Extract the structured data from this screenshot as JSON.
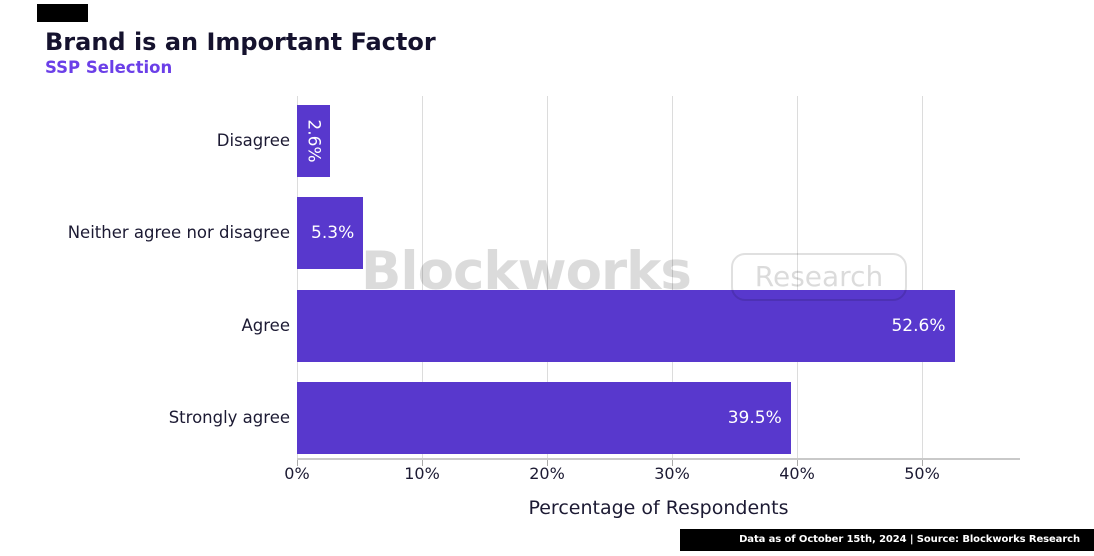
{
  "header": {
    "title": "Brand is an Important Factor",
    "subtitle": "SSP Selection"
  },
  "watermark": {
    "brand": "Blockworks",
    "pill": "Research"
  },
  "footer": {
    "text": "Data as of October 15th, 2024 | Source: Blockworks Research"
  },
  "colors": {
    "bar": "#5838cd",
    "title_text": "#15122e",
    "subtitle_text": "#6b3fe8",
    "axis_text": "#1c1a33",
    "gridline": "#dcdcdc",
    "axis_line": "#c9c9c9",
    "bar_label_text": "#ffffff",
    "footer_bg": "#000000",
    "footer_text": "#ffffff",
    "logo_mark": "#000000"
  },
  "chart_data": {
    "type": "bar",
    "orientation": "horizontal",
    "title": "Brand is an Important Factor",
    "subtitle": "SSP Selection",
    "categories": [
      "Disagree",
      "Neither agree nor disagree",
      "Agree",
      "Strongly agree"
    ],
    "values": [
      2.6,
      5.3,
      52.6,
      39.5
    ],
    "value_labels": [
      "2.6%",
      "5.3%",
      "52.6%",
      "39.5%"
    ],
    "xlabel": "Percentage of Respondents",
    "ylabel": "",
    "x_tick_labels": [
      "0%",
      "10%",
      "20%",
      "30%",
      "40%",
      "50%"
    ],
    "x_tick_values": [
      0,
      10,
      20,
      30,
      40,
      50
    ],
    "xlim": [
      0,
      57.8
    ],
    "grid": true,
    "legend": false,
    "value_labels_position": "inside-end"
  }
}
